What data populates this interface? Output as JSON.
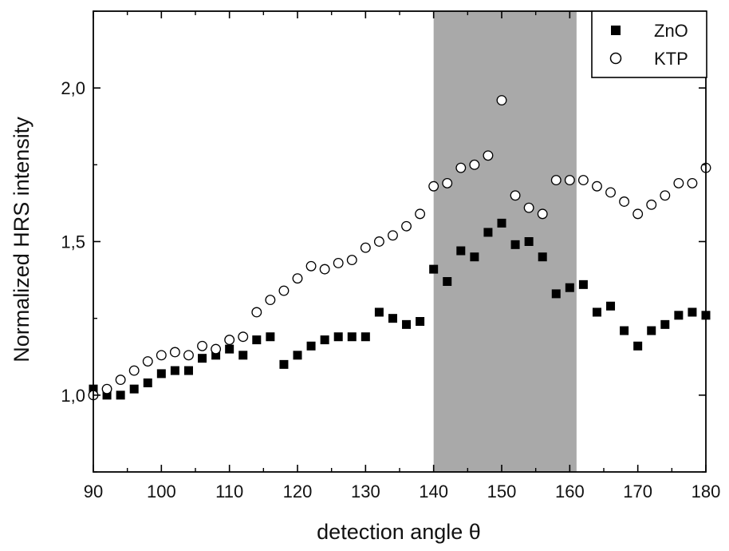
{
  "chart_data": {
    "type": "scatter",
    "xlabel": "detection angle θ",
    "ylabel": "Normalized HRS intensity",
    "xlim": [
      90,
      180
    ],
    "ylim": [
      0.75,
      2.25
    ],
    "x_ticks": [
      "90",
      "100",
      "110",
      "120",
      "130",
      "140",
      "150",
      "160",
      "170",
      "180"
    ],
    "y_ticks": [
      "1,0",
      "1,5",
      "2,0"
    ],
    "y_tick_values": [
      1.0,
      1.5,
      2.0
    ],
    "shaded_region": {
      "x_from": 140,
      "x_to": 161,
      "color": "#a9a9a9"
    },
    "legend_position": "top-right",
    "series": [
      {
        "name": "ZnO",
        "marker": "filled-square",
        "color": "#000000",
        "x": [
          90,
          92,
          94,
          96,
          98,
          100,
          102,
          104,
          106,
          108,
          110,
          112,
          114,
          116,
          118,
          120,
          122,
          124,
          126,
          128,
          130,
          132,
          134,
          136,
          138,
          140,
          142,
          144,
          146,
          148,
          150,
          152,
          154,
          156,
          158,
          160,
          162,
          164,
          166,
          168,
          170,
          172,
          174,
          176,
          178,
          180
        ],
        "y": [
          1.02,
          1.0,
          1.0,
          1.02,
          1.04,
          1.07,
          1.08,
          1.08,
          1.12,
          1.13,
          1.15,
          1.13,
          1.18,
          1.19,
          1.1,
          1.13,
          1.16,
          1.18,
          1.19,
          1.19,
          1.19,
          1.27,
          1.25,
          1.23,
          1.24,
          1.41,
          1.37,
          1.47,
          1.45,
          1.53,
          1.56,
          1.49,
          1.5,
          1.45,
          1.33,
          1.35,
          1.36,
          1.27,
          1.29,
          1.21,
          1.16,
          1.21,
          1.23,
          1.26,
          1.27,
          1.26
        ]
      },
      {
        "name": "KTP",
        "marker": "open-circle",
        "color": "#000000",
        "x": [
          90,
          92,
          94,
          96,
          98,
          100,
          102,
          104,
          106,
          108,
          110,
          112,
          114,
          116,
          118,
          120,
          122,
          124,
          126,
          128,
          130,
          132,
          134,
          136,
          138,
          140,
          142,
          144,
          146,
          148,
          150,
          152,
          154,
          156,
          158,
          160,
          162,
          164,
          166,
          168,
          170,
          172,
          174,
          176,
          178,
          180
        ],
        "y": [
          1.0,
          1.02,
          1.05,
          1.08,
          1.11,
          1.13,
          1.14,
          1.13,
          1.16,
          1.15,
          1.18,
          1.19,
          1.27,
          1.31,
          1.34,
          1.38,
          1.42,
          1.41,
          1.43,
          1.44,
          1.48,
          1.5,
          1.52,
          1.55,
          1.59,
          1.68,
          1.69,
          1.74,
          1.75,
          1.78,
          1.96,
          1.65,
          1.61,
          1.59,
          1.7,
          1.7,
          1.7,
          1.68,
          1.66,
          1.63,
          1.59,
          1.62,
          1.65,
          1.69,
          1.69,
          1.74
        ]
      }
    ]
  }
}
